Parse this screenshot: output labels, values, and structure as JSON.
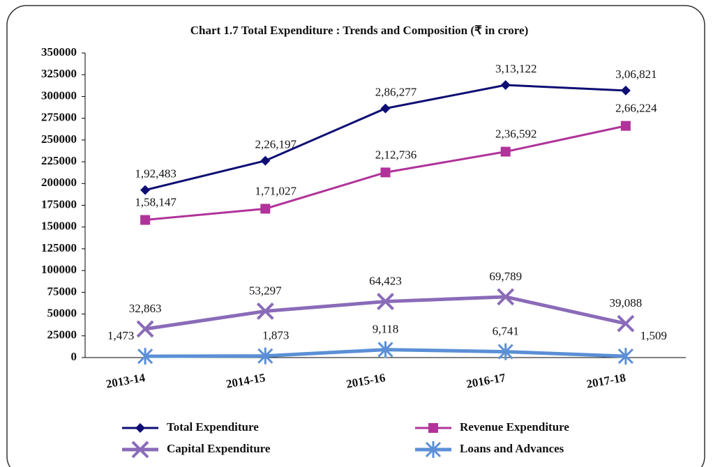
{
  "chart_data": {
    "type": "line",
    "title": "Chart 1.7  Total Expenditure : Trends and Composition (₹ in crore)",
    "categories": [
      "2013-14",
      "2014-15",
      "2015-16",
      "2016-17",
      "2017-18"
    ],
    "ylim": [
      0,
      350000
    ],
    "yticks": [
      0,
      25000,
      50000,
      75000,
      100000,
      125000,
      150000,
      175000,
      200000,
      225000,
      250000,
      275000,
      300000,
      325000,
      350000
    ],
    "series": [
      {
        "name": "Total Expenditure",
        "color": "#0d0d73",
        "marker": "diamond",
        "values": [
          192483,
          226197,
          286277,
          313122,
          306821
        ],
        "value_labels": [
          "1,92,483",
          "2,26,197",
          "2,86,277",
          "3,13,122",
          "3,06,821"
        ]
      },
      {
        "name": "Revenue Expenditure",
        "color": "#b0339a",
        "marker": "square",
        "values": [
          158147,
          171027,
          212736,
          236592,
          266224
        ],
        "value_labels": [
          "1,58,147",
          "1,71,027",
          "2,12,736",
          "2,36,592",
          "2,66,224"
        ]
      },
      {
        "name": "Capital Expenditure",
        "color": "#8a6bb8",
        "marker": "x",
        "values": [
          32863,
          53297,
          64423,
          69789,
          39088
        ],
        "value_labels": [
          "32,863",
          "53,297",
          "64,423",
          "69,789",
          "39,088"
        ]
      },
      {
        "name": "Loans and Advances",
        "color": "#5b8fd6",
        "marker": "asterisk",
        "values": [
          1473,
          1873,
          9118,
          6741,
          1509
        ],
        "value_labels": [
          "1,473",
          "1,873",
          "9,118",
          "6,741",
          "1,509"
        ]
      }
    ]
  }
}
